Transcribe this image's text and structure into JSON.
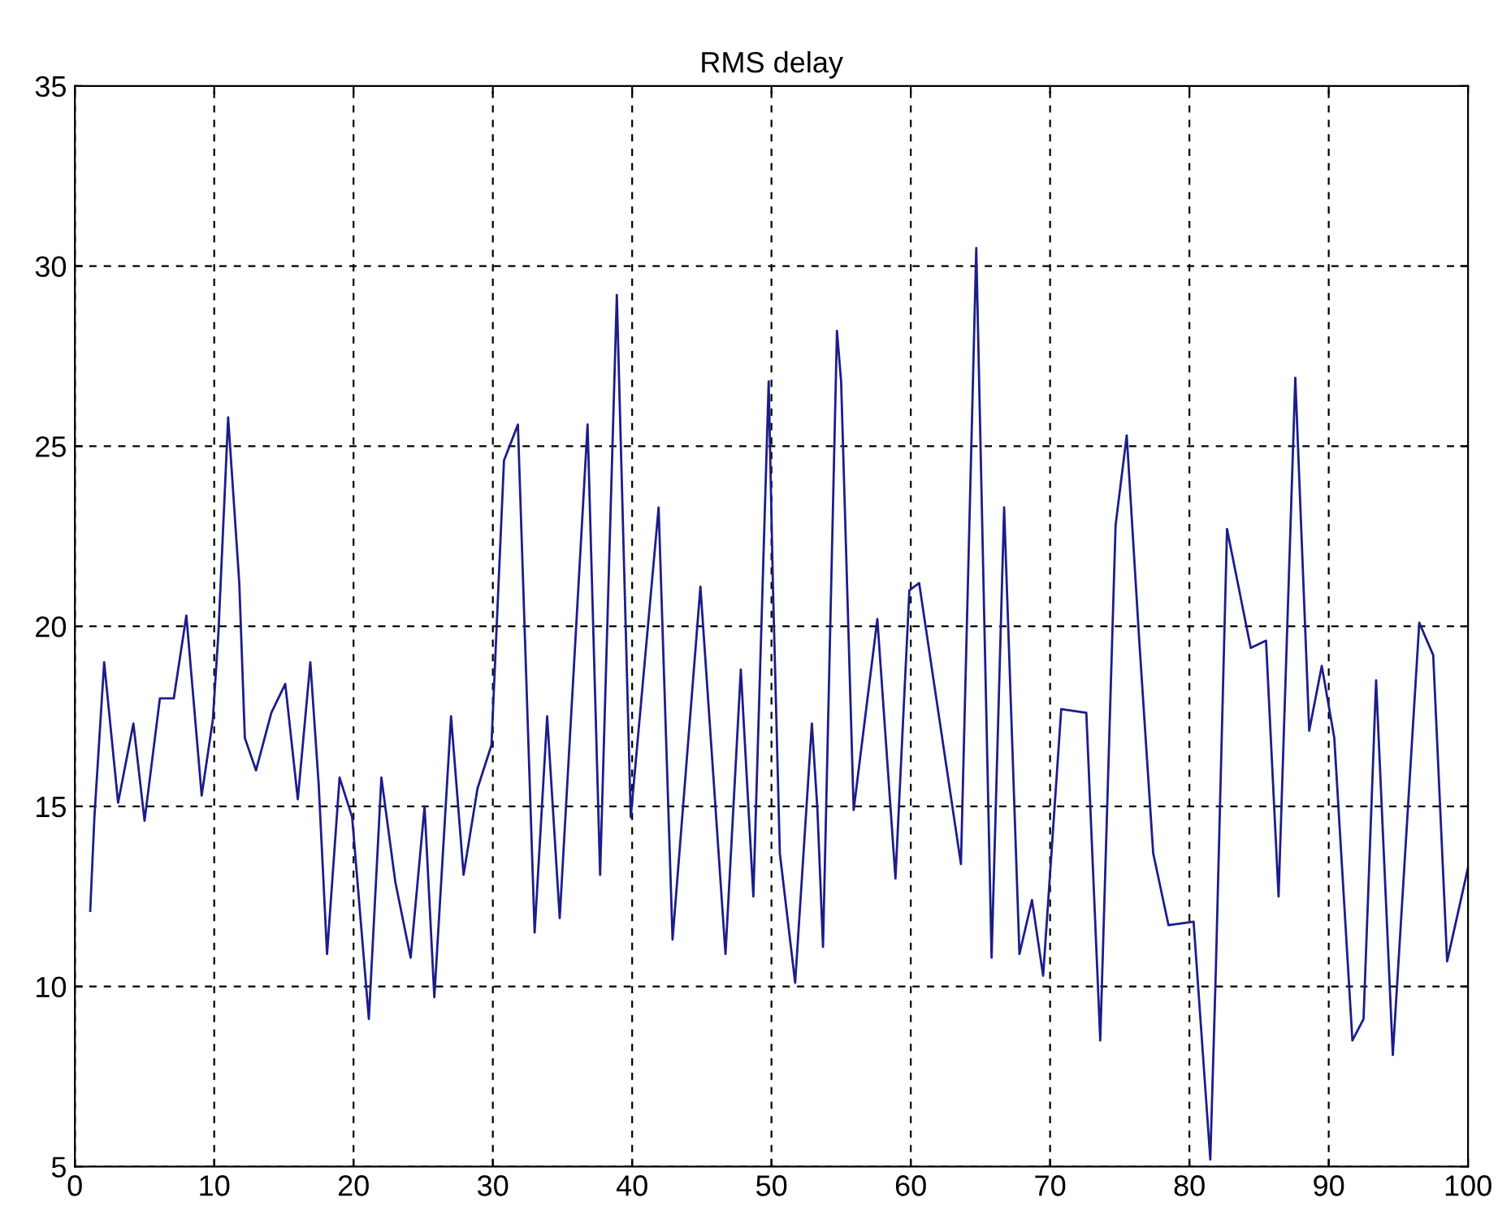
{
  "chart_data": {
    "type": "line",
    "title": "RMS delay",
    "xlim": [
      0,
      100
    ],
    "ylim": [
      5,
      35
    ],
    "xticks": [
      0,
      10,
      20,
      30,
      40,
      50,
      60,
      70,
      80,
      90,
      100
    ],
    "yticks": [
      5,
      10,
      15,
      20,
      25,
      30,
      35
    ],
    "grid": true,
    "line_style": "solid",
    "series": [
      {
        "color": "#1c1c8c",
        "x": [
          1.1,
          1.4,
          2.1,
          3.1,
          4.2,
          5.0,
          6.1,
          7.1,
          8.0,
          9.1,
          9.9,
          10.3,
          11.0,
          11.8,
          12.2,
          13.0,
          14.1,
          15.1,
          16.0,
          16.9,
          17.5,
          18.1,
          19.0,
          19.9,
          21.1,
          22.0,
          23.0,
          24.1,
          25.1,
          25.8,
          27.0,
          27.9,
          28.9,
          29.9,
          30.8,
          31.8,
          33.0,
          33.9,
          34.8,
          36.8,
          37.7,
          38.9,
          39.9,
          41.9,
          42.9,
          44.9,
          46.7,
          47.8,
          48.7,
          49.8,
          50.1,
          50.6,
          51.7,
          52.9,
          53.3,
          53.7,
          54.7,
          55.0,
          55.9,
          57.6,
          58.9,
          59.9,
          60.6,
          63.6,
          64.7,
          65.8,
          66.7,
          67.8,
          68.7,
          69.5,
          70.8,
          72.6,
          73.6,
          74.7,
          75.5,
          76.4,
          77.4,
          78.5,
          80.3,
          81.5,
          81.9,
          82.7,
          84.4,
          85.5,
          86.4,
          87.6,
          88.6,
          89.5,
          90.4,
          91.7,
          92.5,
          93.4,
          94.6,
          96.5,
          97.5,
          98.5,
          100
        ],
        "values": [
          12.1,
          14.7,
          19.0,
          15.1,
          17.3,
          14.6,
          18.0,
          18.0,
          20.3,
          15.3,
          17.4,
          19.8,
          25.8,
          21.2,
          16.9,
          16.0,
          17.6,
          18.4,
          15.2,
          19.0,
          15.6,
          10.9,
          15.8,
          14.7,
          9.1,
          15.8,
          12.9,
          10.8,
          15.0,
          9.7,
          17.5,
          13.1,
          15.5,
          16.7,
          24.6,
          25.6,
          11.5,
          17.5,
          11.9,
          25.6,
          13.1,
          29.2,
          14.7,
          23.3,
          11.3,
          21.1,
          10.9,
          18.8,
          12.5,
          26.8,
          21.2,
          13.7,
          10.1,
          17.3,
          14.9,
          11.1,
          28.2,
          26.8,
          14.9,
          20.2,
          13.0,
          21.0,
          21.2,
          13.4,
          30.5,
          10.8,
          23.3,
          10.9,
          12.4,
          10.3,
          17.7,
          17.6,
          8.5,
          22.8,
          25.3,
          19.6,
          13.7,
          11.7,
          11.8,
          5.2,
          10.5,
          22.7,
          19.4,
          19.6,
          12.5,
          26.9,
          17.1,
          18.9,
          16.9,
          8.5,
          9.1,
          18.5,
          8.1,
          20.1,
          19.2,
          10.7,
          13.3
        ]
      }
    ]
  }
}
